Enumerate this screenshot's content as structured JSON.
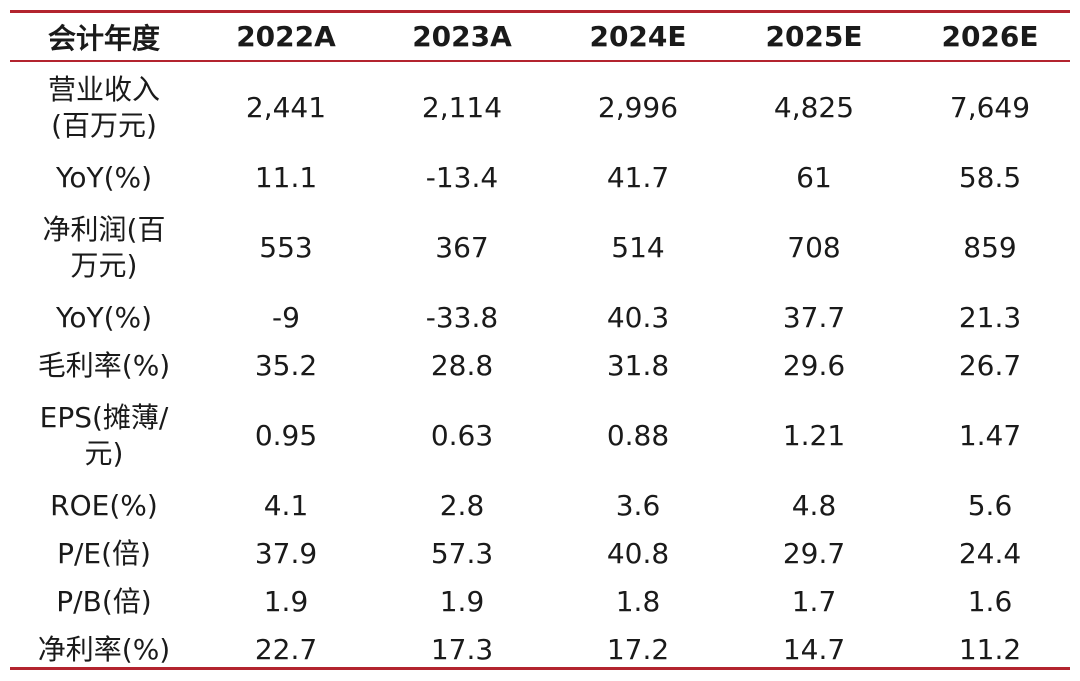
{
  "header": {
    "label": "会计年度",
    "years": [
      "2022A",
      "2023A",
      "2024E",
      "2025E",
      "2026E"
    ]
  },
  "rows": [
    {
      "label": "营业收入\n(百万元)",
      "values": [
        "2,441",
        "2,114",
        "2,996",
        "4,825",
        "7,649"
      ]
    },
    {
      "label": "YoY(%)",
      "values": [
        "11.1",
        "-13.4",
        "41.7",
        "61",
        "58.5"
      ]
    },
    {
      "label": "净利润(百\n万元)",
      "values": [
        "553",
        "367",
        "514",
        "708",
        "859"
      ]
    },
    {
      "label": "YoY(%)",
      "values": [
        "-9",
        "-33.8",
        "40.3",
        "37.7",
        "21.3"
      ]
    },
    {
      "label": "毛利率(%)",
      "values": [
        "35.2",
        "28.8",
        "31.8",
        "29.6",
        "26.7"
      ]
    },
    {
      "label": "EPS(摊薄/\n元)",
      "values": [
        "0.95",
        "0.63",
        "0.88",
        "1.21",
        "1.47"
      ]
    },
    {
      "label": "ROE(%)",
      "values": [
        "4.1",
        "2.8",
        "3.6",
        "4.8",
        "5.6"
      ]
    },
    {
      "label": "P/E(倍)",
      "values": [
        "37.9",
        "57.3",
        "40.8",
        "29.7",
        "24.4"
      ]
    },
    {
      "label": "P/B(倍)",
      "values": [
        "1.9",
        "1.9",
        "1.8",
        "1.7",
        "1.6"
      ]
    },
    {
      "label": "净利率(%)",
      "values": [
        "22.7",
        "17.3",
        "17.2",
        "14.7",
        "11.2"
      ]
    }
  ],
  "colors": {
    "rule": "#b3242f",
    "text": "#1a1a1a"
  }
}
